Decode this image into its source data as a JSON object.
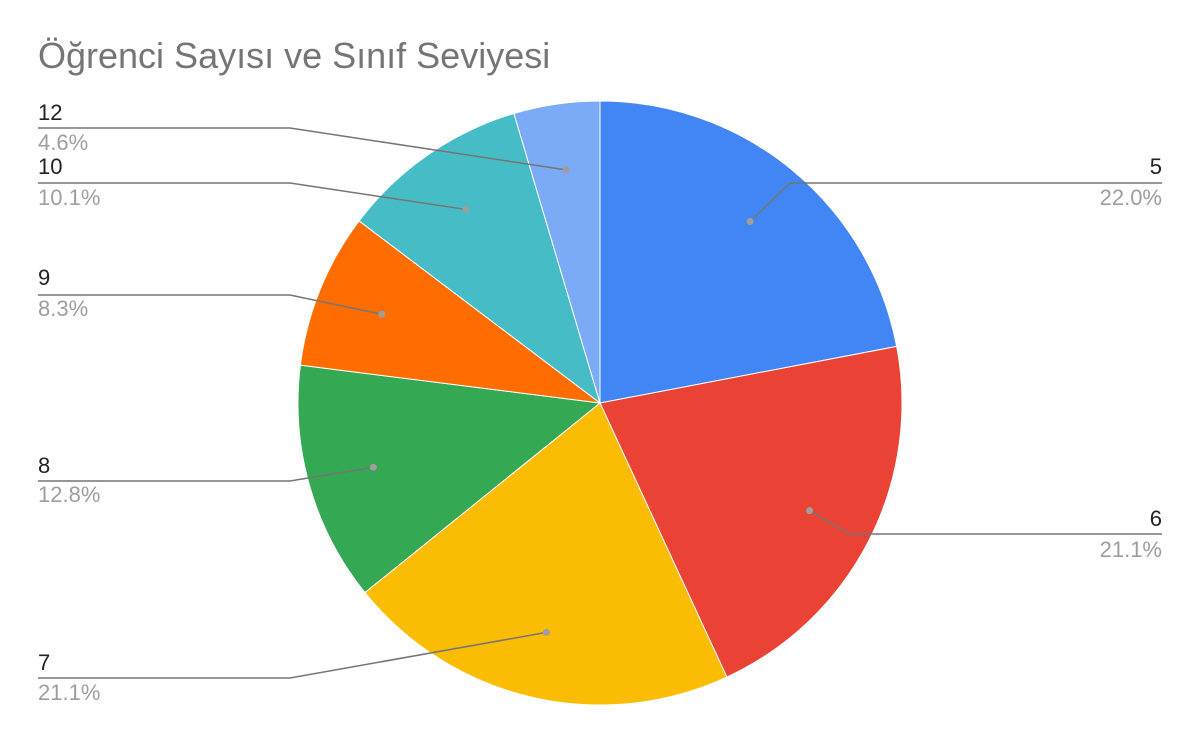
{
  "chart_data": {
    "type": "pie",
    "title": "Öğrenci Sayısı ve Sınıf Seviyesi",
    "slices": [
      {
        "label": "5",
        "percent": 22.0,
        "percent_label": "22.0%",
        "color": "#4285F4"
      },
      {
        "label": "6",
        "percent": 21.1,
        "percent_label": "21.1%",
        "color": "#EA4335"
      },
      {
        "label": "7",
        "percent": 21.1,
        "percent_label": "21.1%",
        "color": "#FBBC04"
      },
      {
        "label": "8",
        "percent": 12.8,
        "percent_label": "12.8%",
        "color": "#34A853"
      },
      {
        "label": "9",
        "percent": 8.3,
        "percent_label": "8.3%",
        "color": "#FF6D01"
      },
      {
        "label": "10",
        "percent": 10.1,
        "percent_label": "10.1%",
        "color": "#46BDC6"
      },
      {
        "label": "12",
        "percent": 4.6,
        "percent_label": "4.6%",
        "color": "#7BAAF7"
      }
    ],
    "start_angle": "12 o'clock",
    "direction": "clockwise",
    "legend": "none (labels with leader lines)"
  }
}
